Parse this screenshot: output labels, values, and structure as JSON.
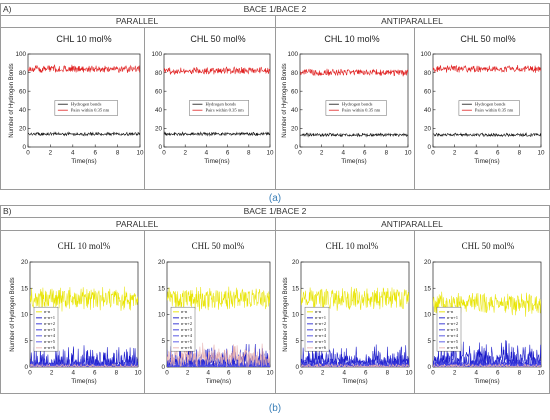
{
  "figure": {
    "section_a": {
      "letter": "A)",
      "title": "BACE 1/BACE 2",
      "groups": [
        "PARALLEL",
        "ANTIPARALLEL"
      ],
      "caption": "(a)"
    },
    "section_b": {
      "letter": "B)",
      "title": "BACE 1/BACE 2",
      "groups": [
        "PARALLEL",
        "ANTIPARALLEL"
      ],
      "caption": "(b)"
    }
  },
  "colors": {
    "pairs": "#e02020",
    "hbonds": "#111111",
    "nn": "#e8e400",
    "nn1": "#1414c8",
    "nn2": "#2a2ad0",
    "nn3": "#3030d8",
    "nn4": "#4646e0",
    "nn5": "#5050e6",
    "nn6": "#e6b0b0",
    "panel_border": "#9a9a9a",
    "caption": "#3a7fb8"
  },
  "chart_data": [
    {
      "type": "line",
      "section": "A",
      "group": "PARALLEL",
      "title": "CHL 10 mol%",
      "xlabel": "Time(ns)",
      "ylabel": "Number of Hydrogen Bonds",
      "xlim": [
        0,
        10
      ],
      "ylim": [
        0,
        100
      ],
      "xticks": [
        "0",
        "2",
        "4",
        "6",
        "8",
        "10"
      ],
      "yticks": [
        "0",
        "20",
        "40",
        "60",
        "80",
        "100"
      ],
      "legend": "center",
      "grid": false,
      "series": [
        {
          "name": "Hydrogen bonds",
          "color": "#111111",
          "mean": 14,
          "spread": 2
        },
        {
          "name": "Pairs within 0.35 nm",
          "color": "#e02020",
          "mean": 84,
          "spread": 4.5
        }
      ]
    },
    {
      "type": "line",
      "section": "A",
      "group": "PARALLEL",
      "title": "CHL 50 mol%",
      "xlabel": "Time(ns)",
      "ylabel": "",
      "xlim": [
        0,
        10
      ],
      "ylim": [
        0,
        100
      ],
      "xticks": [
        "0",
        "2",
        "4",
        "6",
        "8",
        "10"
      ],
      "yticks": [
        "0",
        "20",
        "40",
        "60",
        "80",
        "100"
      ],
      "legend": "center",
      "grid": false,
      "series": [
        {
          "name": "Hydrogen bonds",
          "color": "#111111",
          "mean": 14,
          "spread": 2
        },
        {
          "name": "Pairs within 0.35 nm",
          "color": "#e02020",
          "mean": 82,
          "spread": 4.5
        }
      ]
    },
    {
      "type": "line",
      "section": "A",
      "group": "ANTIPARALLEL",
      "title": "CHL 10 mol%",
      "xlabel": "Time(ns)",
      "ylabel": "Number of Hydrogen Bonds",
      "xlim": [
        0,
        10
      ],
      "ylim": [
        0,
        100
      ],
      "xticks": [
        "0",
        "2",
        "4",
        "6",
        "8",
        "10"
      ],
      "yticks": [
        "0",
        "20",
        "40",
        "60",
        "80",
        "100"
      ],
      "legend": "center",
      "grid": false,
      "series": [
        {
          "name": "Hydrogen bonds",
          "color": "#111111",
          "mean": 13,
          "spread": 2
        },
        {
          "name": "Pairs within 0.35 nm",
          "color": "#e02020",
          "mean": 80,
          "spread": 4.5
        }
      ]
    },
    {
      "type": "line",
      "section": "A",
      "group": "ANTIPARALLEL",
      "title": "CHL 50 mol%",
      "xlabel": "Time(ns)",
      "ylabel": "",
      "xlim": [
        0,
        10
      ],
      "ylim": [
        0,
        100
      ],
      "xticks": [
        "0",
        "2",
        "4",
        "6",
        "8",
        "10"
      ],
      "yticks": [
        "0",
        "20",
        "40",
        "60",
        "80",
        "100"
      ],
      "legend": "center",
      "grid": false,
      "series": [
        {
          "name": "Hydrogen bonds",
          "color": "#111111",
          "mean": 13,
          "spread": 2
        },
        {
          "name": "Pairs within 0.35 nm",
          "color": "#e02020",
          "mean": 84,
          "spread": 4.5
        }
      ]
    },
    {
      "type": "line",
      "section": "B",
      "group": "PARALLEL",
      "title": "CHL 10 mol%",
      "xlabel": "Time(ns)",
      "ylabel": "Number of Hydrogen Bonds",
      "xlim": [
        0,
        10
      ],
      "ylim": [
        0,
        20
      ],
      "xticks": [
        "0",
        "2",
        "4",
        "6",
        "8",
        "10"
      ],
      "yticks": [
        "0",
        "5",
        "10",
        "15",
        "20"
      ],
      "legend": "center-left",
      "grid": false,
      "series": [
        {
          "name": "n-n",
          "color": "#e8e400",
          "mean": 13,
          "spread": 2.5
        },
        {
          "name": "n-n+1",
          "color": "#1414c8",
          "mean": 0.5,
          "spread": 2
        },
        {
          "name": "n-n+2",
          "color": "#2a2ad0",
          "mean": 0.3,
          "spread": 1.2
        },
        {
          "name": "n-n+3",
          "color": "#3030d8",
          "mean": 0.2,
          "spread": 0.8
        },
        {
          "name": "n-n+4",
          "color": "#4646e0",
          "mean": 0.1,
          "spread": 0.5
        },
        {
          "name": "n-n+5",
          "color": "#5050e6",
          "mean": 0.1,
          "spread": 0.3
        },
        {
          "name": "n-n+6",
          "color": "#e6b0b0",
          "mean": 0.1,
          "spread": 0.3
        }
      ]
    },
    {
      "type": "line",
      "section": "B",
      "group": "PARALLEL",
      "title": "CHL 50 mol%",
      "xlabel": "Time(ns)",
      "ylabel": "",
      "xlim": [
        0,
        10
      ],
      "ylim": [
        0,
        20
      ],
      "xticks": [
        "0",
        "2",
        "4",
        "6",
        "8",
        "10"
      ],
      "yticks": [
        "0",
        "5",
        "10",
        "15",
        "20"
      ],
      "legend": "center-left",
      "grid": false,
      "series": [
        {
          "name": "n-n",
          "color": "#e8e400",
          "mean": 13,
          "spread": 2.5
        },
        {
          "name": "n-n+1",
          "color": "#1414c8",
          "mean": 0.8,
          "spread": 2
        },
        {
          "name": "n-n+2",
          "color": "#2a2ad0",
          "mean": 0.4,
          "spread": 1.2
        },
        {
          "name": "n-n+3",
          "color": "#3030d8",
          "mean": 0.2,
          "spread": 0.8
        },
        {
          "name": "n-n+4",
          "color": "#4646e0",
          "mean": 0.1,
          "spread": 0.5
        },
        {
          "name": "n-n+5",
          "color": "#5050e6",
          "mean": 0.1,
          "spread": 0.3
        },
        {
          "name": "n-n+6",
          "color": "#e6b0b0",
          "mean": 1.5,
          "spread": 1.2
        }
      ]
    },
    {
      "type": "line",
      "section": "B",
      "group": "ANTIPARALLEL",
      "title": "CHL 10 mol%",
      "xlabel": "Time(ns)",
      "ylabel": "Number of Hydrogen Bonds",
      "xlim": [
        0,
        10
      ],
      "ylim": [
        0,
        20
      ],
      "xticks": [
        "0",
        "2",
        "4",
        "6",
        "8",
        "10"
      ],
      "yticks": [
        "0",
        "5",
        "10",
        "15",
        "20"
      ],
      "legend": "center-left",
      "grid": false,
      "series": [
        {
          "name": "n-n",
          "color": "#e8e400",
          "mean": 13,
          "spread": 2.5
        },
        {
          "name": "n-n+1",
          "color": "#1414c8",
          "mean": 0.8,
          "spread": 2
        },
        {
          "name": "n-n+2",
          "color": "#2a2ad0",
          "mean": 0.4,
          "spread": 1.2
        },
        {
          "name": "n-n+3",
          "color": "#3030d8",
          "mean": 0.2,
          "spread": 0.8
        },
        {
          "name": "n-n+4",
          "color": "#4646e0",
          "mean": 0.1,
          "spread": 0.5
        },
        {
          "name": "n-n+5",
          "color": "#5050e6",
          "mean": 0.1,
          "spread": 0.3
        },
        {
          "name": "n-n+6",
          "color": "#e6b0b0",
          "mean": 0.1,
          "spread": 0.3
        }
      ]
    },
    {
      "type": "line",
      "section": "B",
      "group": "ANTIPARALLEL",
      "title": "CHL 50 mol%",
      "xlabel": "Time(ns)",
      "ylabel": "",
      "xlim": [
        0,
        10
      ],
      "ylim": [
        0,
        20
      ],
      "xticks": [
        "0",
        "2",
        "4",
        "6",
        "8",
        "10"
      ],
      "yticks": [
        "0",
        "5",
        "10",
        "15",
        "20"
      ],
      "legend": "center-left",
      "grid": false,
      "series": [
        {
          "name": "n-n",
          "color": "#e8e400",
          "mean": 12,
          "spread": 2.5
        },
        {
          "name": "n-n+1",
          "color": "#1414c8",
          "mean": 1.2,
          "spread": 2
        },
        {
          "name": "n-n+2",
          "color": "#2a2ad0",
          "mean": 0.5,
          "spread": 1.2
        },
        {
          "name": "n-n+3",
          "color": "#3030d8",
          "mean": 0.3,
          "spread": 0.8
        },
        {
          "name": "n-n+4",
          "color": "#4646e0",
          "mean": 0.1,
          "spread": 0.5
        },
        {
          "name": "n-n+5",
          "color": "#5050e6",
          "mean": 0.1,
          "spread": 0.3
        },
        {
          "name": "n-n+6",
          "color": "#e6b0b0",
          "mean": 0.1,
          "spread": 0.3
        }
      ]
    }
  ]
}
